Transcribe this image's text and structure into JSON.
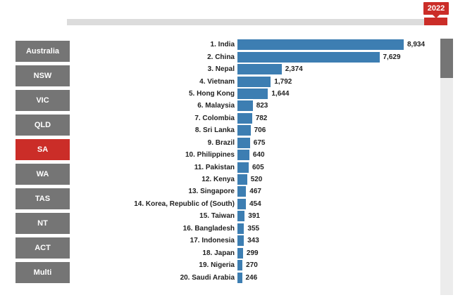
{
  "timeline": {
    "year_label": "2022",
    "accent_color": "#cb2d28"
  },
  "sidebar": {
    "items": [
      {
        "label": "Australia",
        "active": false
      },
      {
        "label": "NSW",
        "active": false
      },
      {
        "label": "VIC",
        "active": false
      },
      {
        "label": "QLD",
        "active": false
      },
      {
        "label": "SA",
        "active": true
      },
      {
        "label": "WA",
        "active": false
      },
      {
        "label": "TAS",
        "active": false
      },
      {
        "label": "NT",
        "active": false
      },
      {
        "label": "ACT",
        "active": false
      },
      {
        "label": "Multi",
        "active": false
      }
    ]
  },
  "chart_data": {
    "type": "bar",
    "orientation": "horizontal",
    "title": "",
    "xlabel": "",
    "ylabel": "",
    "xlim": [
      0,
      8934
    ],
    "grid": false,
    "legend": false,
    "bar_color": "#3d7eb2",
    "categories": [
      "1. India",
      "2. China",
      "3. Nepal",
      "4. Vietnam",
      "5. Hong Kong",
      "6. Malaysia",
      "7. Colombia",
      "8. Sri Lanka",
      "9. Brazil",
      "10. Philippines",
      "11. Pakistan",
      "12. Kenya",
      "13. Singapore",
      "14. Korea, Republic of (South)",
      "15. Taiwan",
      "16. Bangladesh",
      "17. Indonesia",
      "18. Japan",
      "19. Nigeria",
      "20. Saudi Arabia"
    ],
    "values": [
      8934,
      7629,
      2374,
      1792,
      1644,
      823,
      782,
      706,
      675,
      640,
      605,
      520,
      467,
      454,
      391,
      355,
      343,
      299,
      270,
      246
    ],
    "value_labels": [
      "8,934",
      "7,629",
      "2,374",
      "1,792",
      "1,644",
      "823",
      "782",
      "706",
      "675",
      "640",
      "605",
      "520",
      "467",
      "454",
      "391",
      "355",
      "343",
      "299",
      "270",
      "246"
    ]
  },
  "colors": {
    "button_gray": "#757575",
    "slider_track": "#dcdcdc",
    "scroll_track": "#ececec",
    "scroll_thumb": "#757575",
    "text": "#212121"
  }
}
